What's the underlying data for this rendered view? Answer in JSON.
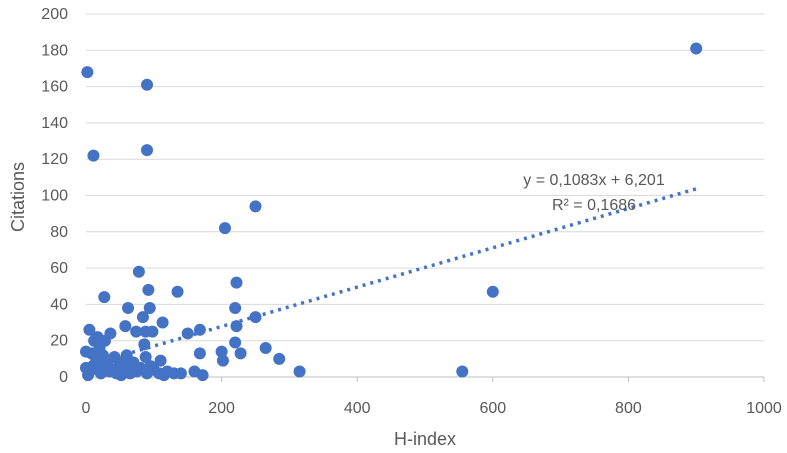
{
  "chart_data": {
    "type": "scatter",
    "xlabel": "H-index",
    "ylabel": "Citations",
    "xlim": [
      0,
      1000
    ],
    "ylim": [
      0,
      200
    ],
    "x_ticks": [
      "0",
      "200",
      "400",
      "600",
      "800",
      "1000"
    ],
    "y_ticks": [
      "0",
      "20",
      "40",
      "60",
      "80",
      "100",
      "120",
      "140",
      "160",
      "180",
      "200"
    ],
    "grid": "horizontal",
    "marker_color": "#4472c4",
    "trendline": {
      "type": "linear",
      "slope": 0.1083,
      "intercept": 6.201,
      "equation_label": "y = 0,1083x + 6,201",
      "r2_label": "R² = 0,1686",
      "color": "#4472c4",
      "style": "dotted"
    },
    "points": [
      [
        2,
        168
      ],
      [
        11,
        122
      ],
      [
        90,
        161
      ],
      [
        90,
        125
      ],
      [
        900,
        181
      ],
      [
        205,
        82
      ],
      [
        250,
        94
      ],
      [
        78,
        58
      ],
      [
        222,
        52
      ],
      [
        600,
        47
      ],
      [
        135,
        47
      ],
      [
        92,
        48
      ],
      [
        27,
        44
      ],
      [
        62,
        38
      ],
      [
        94,
        38
      ],
      [
        220,
        38
      ],
      [
        84,
        33
      ],
      [
        250,
        33
      ],
      [
        113,
        30
      ],
      [
        58,
        28
      ],
      [
        222,
        28
      ],
      [
        5,
        26
      ],
      [
        74,
        25
      ],
      [
        88,
        25
      ],
      [
        98,
        25
      ],
      [
        36,
        24
      ],
      [
        150,
        24
      ],
      [
        168,
        26
      ],
      [
        17,
        22
      ],
      [
        12,
        20
      ],
      [
        28,
        20
      ],
      [
        220,
        19
      ],
      [
        86,
        18
      ],
      [
        20,
        16
      ],
      [
        265,
        16
      ],
      [
        0,
        14
      ],
      [
        200,
        14
      ],
      [
        8,
        13
      ],
      [
        60,
        12
      ],
      [
        25,
        12
      ],
      [
        42,
        11
      ],
      [
        88,
        11
      ],
      [
        168,
        13
      ],
      [
        228,
        13
      ],
      [
        285,
        10
      ],
      [
        202,
        9
      ],
      [
        110,
        9
      ],
      [
        15,
        9
      ],
      [
        50,
        8
      ],
      [
        70,
        8
      ],
      [
        10,
        6
      ],
      [
        32,
        7
      ],
      [
        55,
        7
      ],
      [
        0,
        5
      ],
      [
        80,
        5
      ],
      [
        100,
        4
      ],
      [
        120,
        3
      ],
      [
        160,
        3
      ],
      [
        315,
        3
      ],
      [
        555,
        3
      ],
      [
        5,
        3
      ],
      [
        22,
        2
      ],
      [
        45,
        2
      ],
      [
        65,
        2
      ],
      [
        90,
        2
      ],
      [
        130,
        2
      ],
      [
        140,
        2
      ],
      [
        172,
        1
      ],
      [
        40,
        4
      ],
      [
        75,
        3
      ],
      [
        95,
        6
      ],
      [
        3,
        1
      ],
      [
        18,
        4
      ],
      [
        35,
        3
      ],
      [
        52,
        1
      ],
      [
        68,
        6
      ],
      [
        108,
        2
      ],
      [
        115,
        1
      ],
      [
        60,
        4
      ],
      [
        28,
        6
      ]
    ]
  }
}
